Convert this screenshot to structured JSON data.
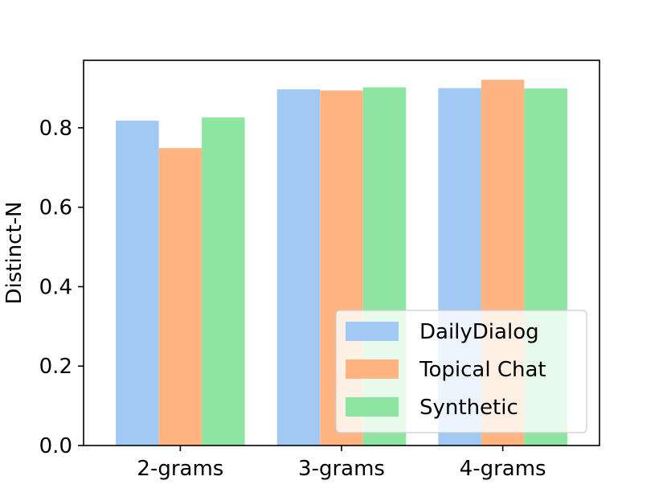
{
  "chart_data": {
    "type": "bar",
    "categories": [
      "2-grams",
      "3-grams",
      "4-grams"
    ],
    "series": [
      {
        "name": "DailyDialog",
        "values": [
          0.818,
          0.897,
          0.9
        ],
        "color": "#a1c9f4"
      },
      {
        "name": "Topical Chat",
        "values": [
          0.749,
          0.894,
          0.921
        ],
        "color": "#ffb482"
      },
      {
        "name": "Synthetic",
        "values": [
          0.826,
          0.902,
          0.899
        ],
        "color": "#8de5a1"
      }
    ],
    "ylabel": "Distinct-N",
    "ylim": [
      0,
      0.97
    ],
    "yticks": [
      0.0,
      0.2,
      0.4,
      0.6,
      0.8
    ],
    "ytick_labels": [
      "0.0",
      "0.2",
      "0.4",
      "0.6",
      "0.8"
    ],
    "grid": false,
    "legend_position": "lower-right"
  }
}
